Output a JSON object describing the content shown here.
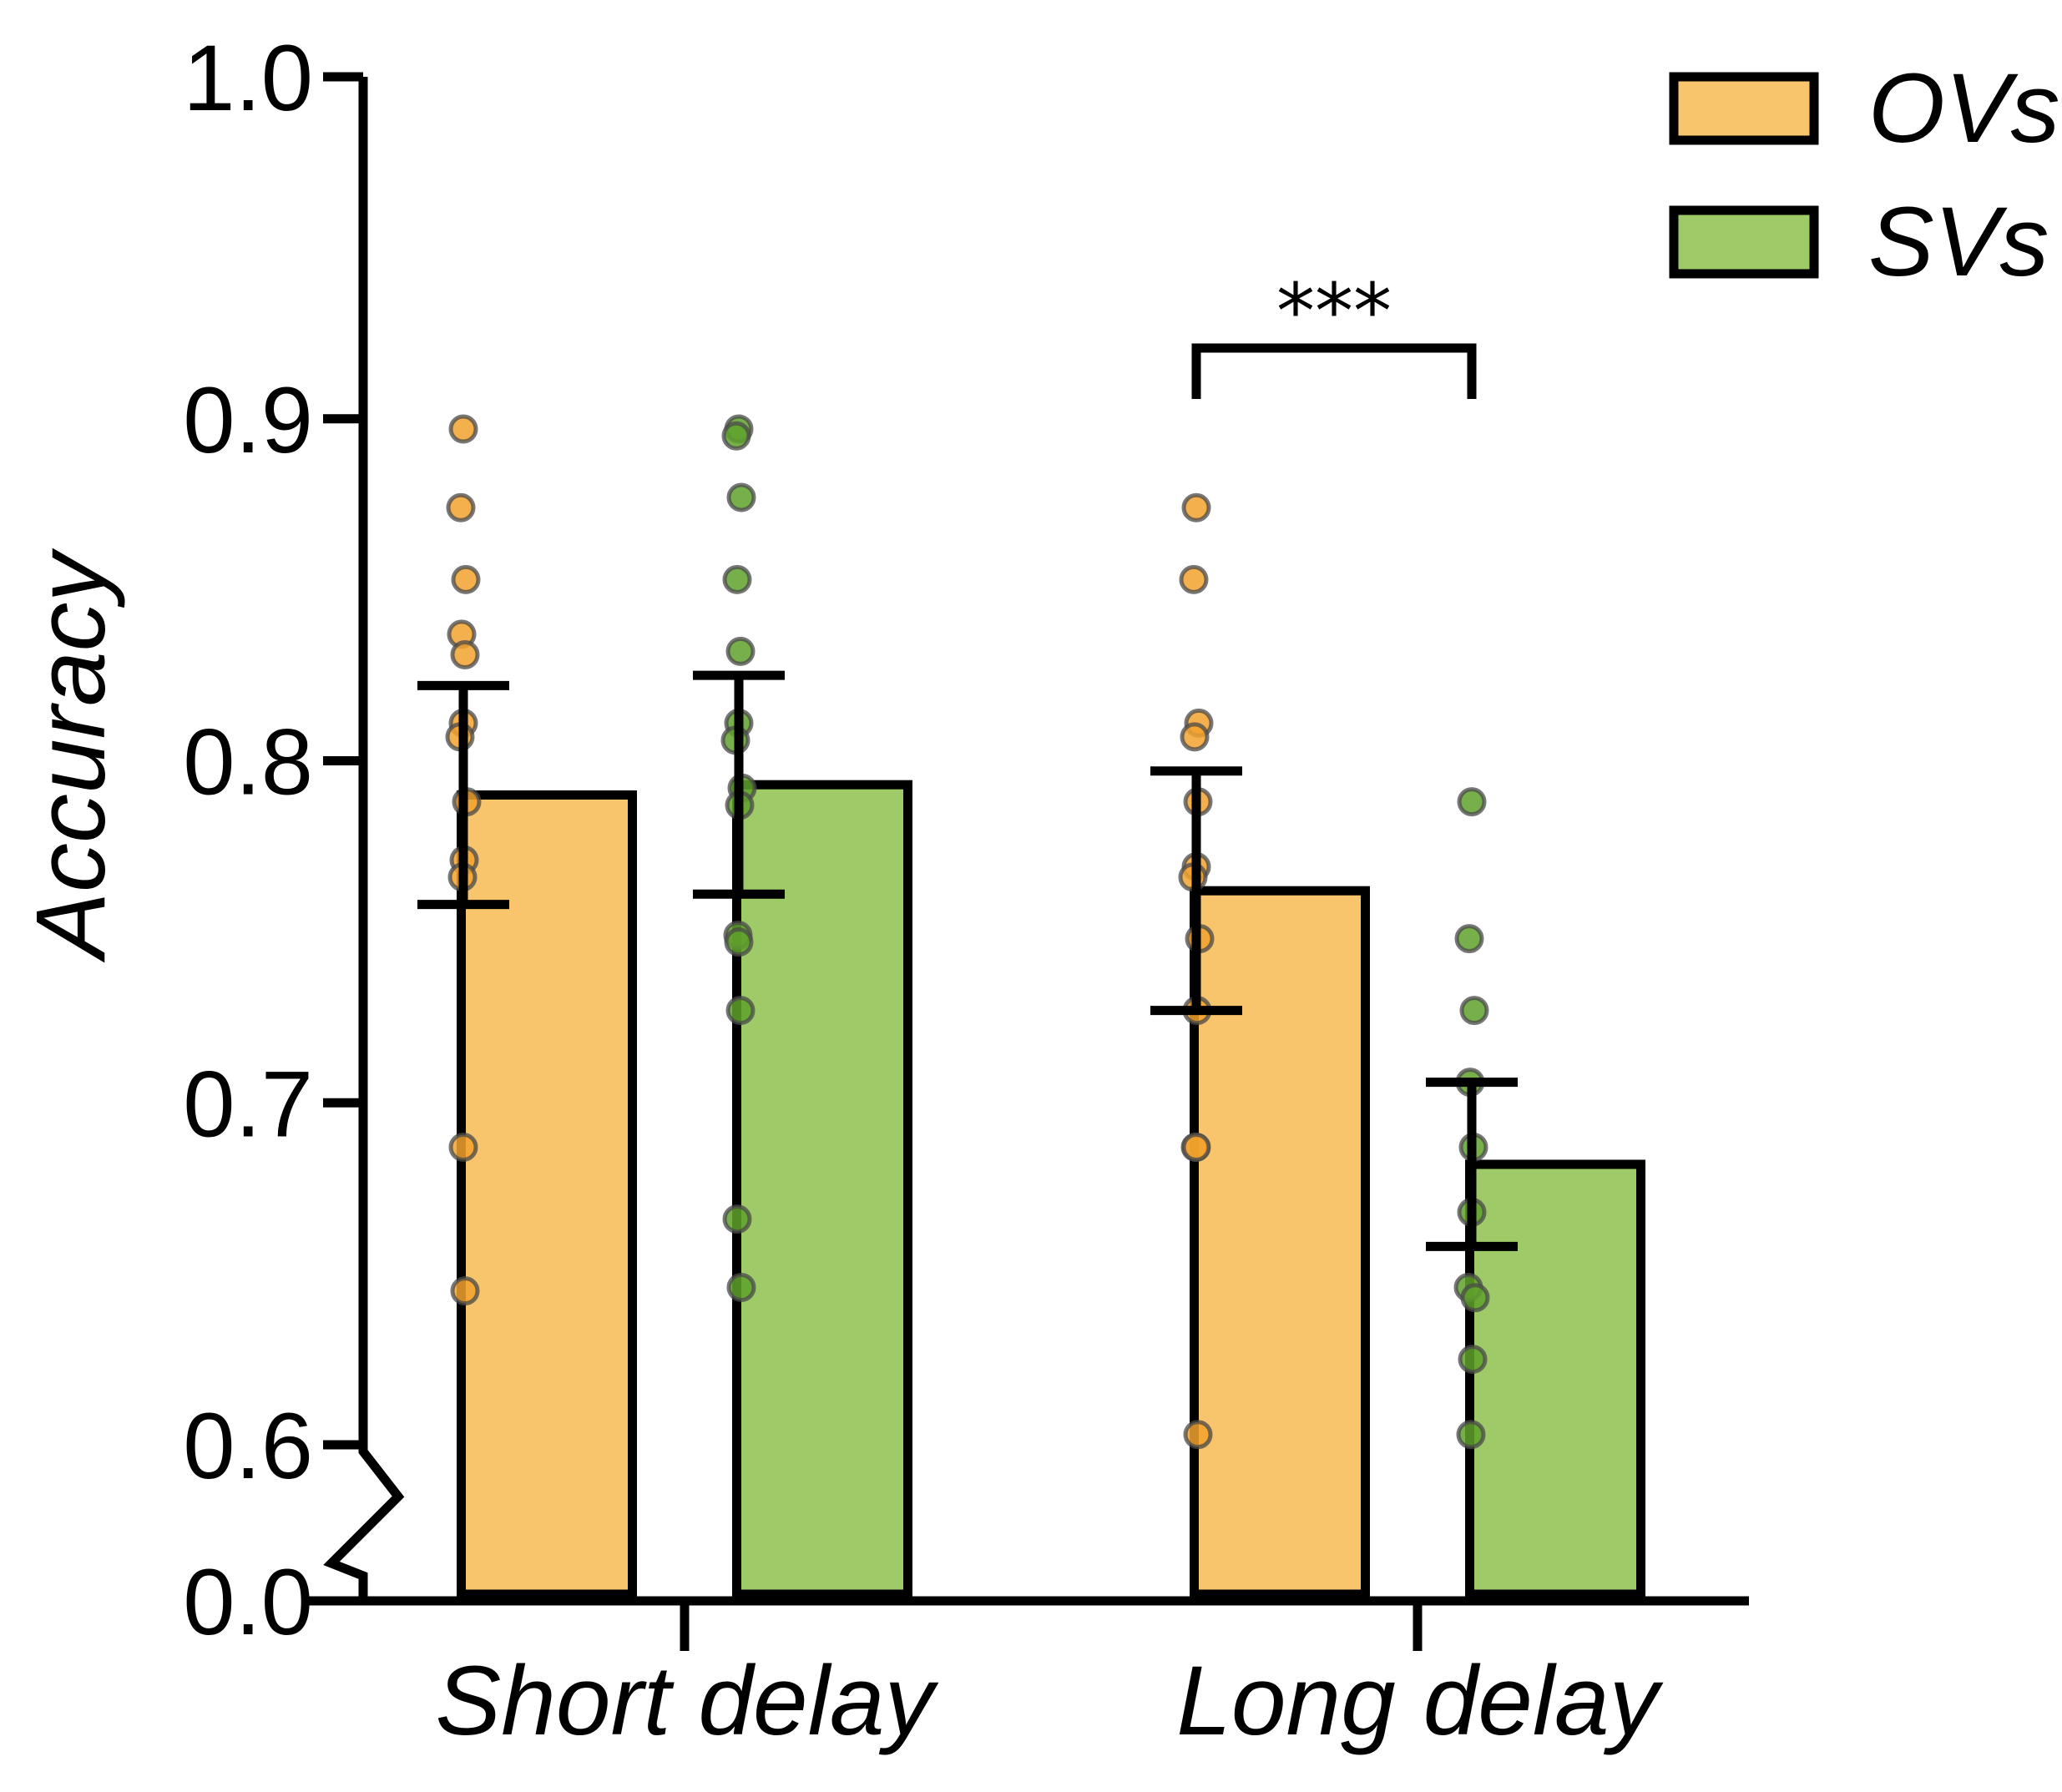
{
  "chart_data": {
    "type": "bar",
    "title": "",
    "xlabel": "",
    "ylabel": "Accuracy",
    "ylim": [
      0.0,
      1.0
    ],
    "axis_break": {
      "from": 0.0,
      "to": 0.6
    },
    "y_ticks": [
      {
        "value": 0.0,
        "label": "0.0"
      },
      {
        "value": 0.6,
        "label": "0.6"
      },
      {
        "value": 0.7,
        "label": "0.7"
      },
      {
        "value": 0.8,
        "label": "0.8"
      },
      {
        "value": 0.9,
        "label": "0.9"
      },
      {
        "value": 1.0,
        "label": "1.0"
      }
    ],
    "categories": [
      "Short delay",
      "Long delay"
    ],
    "series": [
      {
        "name": "OVs",
        "color": "#F8C46C",
        "dot_color": "#F2A22E",
        "values": [
          0.79,
          0.762
        ],
        "error": [
          0.032,
          0.035
        ],
        "points": [
          [
            0.897,
            0.874,
            0.853,
            0.837,
            0.831,
            0.811,
            0.807,
            0.788,
            0.771,
            0.766,
            0.687,
            0.645
          ],
          [
            0.874,
            0.853,
            0.811,
            0.807,
            0.788,
            0.769,
            0.766,
            0.748,
            0.727,
            0.687,
            0.687,
            0.603
          ]
        ]
      },
      {
        "name": "SVs",
        "color": "#9ECB67",
        "dot_color": "#5FA12B",
        "values": [
          0.793,
          0.682
        ],
        "error": [
          0.032,
          0.024
        ],
        "points": [
          [
            0.897,
            0.895,
            0.877,
            0.853,
            0.832,
            0.811,
            0.806,
            0.792,
            0.787,
            0.749,
            0.747,
            0.727,
            0.666,
            0.646
          ],
          [
            0.788,
            0.748,
            0.727,
            0.706,
            0.687,
            0.668,
            0.646,
            0.643,
            0.625,
            0.603
          ]
        ]
      }
    ],
    "annotations": [
      {
        "text": "***",
        "category": "Long delay",
        "between": [
          "OVs",
          "SVs"
        ],
        "level": 0.91
      }
    ],
    "legend": {
      "position": "top-right",
      "entries": [
        "OVs",
        "SVs"
      ]
    }
  }
}
